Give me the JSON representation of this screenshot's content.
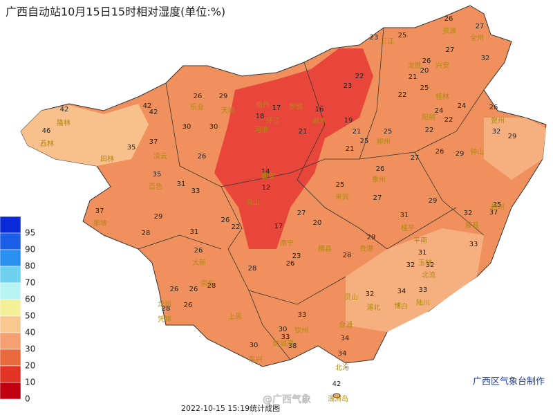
{
  "header": {
    "title": "广西自动站10月15日15时相对湿度(单位:%)"
  },
  "legend": {
    "levels": [
      95,
      90,
      80,
      70,
      60,
      50,
      40,
      30,
      20,
      10,
      0
    ],
    "colors": [
      "#0a2ad8",
      "#1a5ee8",
      "#2a90f0",
      "#70d0f0",
      "#b8f4f4",
      "#f4f098",
      "#f8c890",
      "#f4a070",
      "#ea6a40",
      "#e23424",
      "#c00010"
    ]
  },
  "stations": [
    42,
    46,
    42,
    42,
    37,
    35,
    35,
    30,
    30,
    26,
    29,
    26,
    31,
    33,
    37,
    29,
    28,
    31,
    26,
    26,
    22,
    18,
    17,
    16,
    21,
    14,
    12,
    17,
    27,
    20,
    23,
    26,
    28,
    28,
    25,
    27,
    29,
    31,
    32,
    35,
    37,
    33,
    31,
    32,
    32,
    34,
    33,
    32,
    29,
    26,
    27,
    26,
    29,
    32,
    29,
    26,
    22,
    24,
    24,
    22,
    22,
    21,
    20,
    25,
    26,
    27,
    32,
    27,
    26,
    25,
    23,
    22,
    23,
    19,
    21,
    25,
    25,
    21,
    26,
    28,
    26,
    28,
    26,
    30,
    33,
    38,
    33,
    30,
    34,
    34,
    42
  ],
  "cities": [
    "隆林",
    "西林",
    "田林",
    "百色",
    "那坡",
    "凌云",
    "乐业",
    "天峨",
    "南丹",
    "河池",
    "环江",
    "罗城",
    "融水",
    "三江",
    "龙胜",
    "资源",
    "全州",
    "兴安",
    "桂林",
    "阳朔",
    "贺州",
    "钟山",
    "梧州",
    "藤县",
    "玉林",
    "北流",
    "陆川",
    "博白",
    "合浦",
    "北海",
    "涠洲岛",
    "钦州",
    "防城港",
    "东兴",
    "上思",
    "崇左",
    "凭祥",
    "龙州",
    "大新",
    "南宁",
    "马山",
    "都安",
    "来宾",
    "柳州",
    "象州",
    "桂平",
    "平南",
    "贵港",
    "横县",
    "灵山",
    "浦北"
  ],
  "footer": {
    "credit": "广西区气象台制作",
    "timestamp": "2022-10-15 15:19统计成图",
    "watermark": "@广西气象"
  }
}
